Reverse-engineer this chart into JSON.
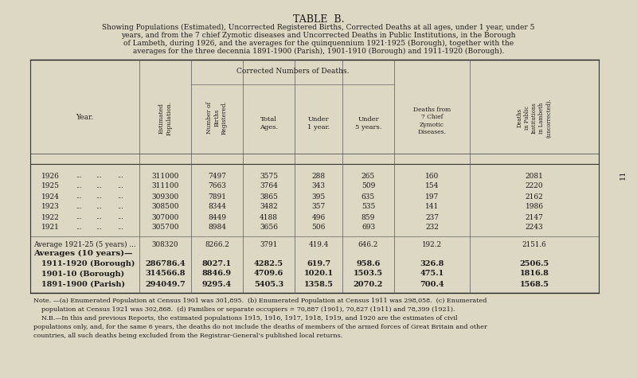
{
  "title": "TABLE  B.",
  "subtitle_lines": [
    "Showing Populations (Estimated), Uncorrected Registered Births, Corrected Deaths at all ages, under 1 year, under 5",
    "years, and from the 7 chief Zymotic diseases and Uncorrected Deaths in Public Institutions, in the Borough",
    "of Lambeth, during 1926, and the averages for the quinquennium 1921·1925 (Borough), together with the",
    "averages for the three decennia 1891-1900 (Parish), 1901-1910 (Borough) and 1911-1920 (Borough)."
  ],
  "bg_color": "#ddd8c4",
  "rows": [
    {
      "year": "1926",
      "pop": "311000",
      "births": "7497",
      "total": "3575",
      "u1": "288",
      "u5": "265",
      "zymo": "160",
      "pub": "2081"
    },
    {
      "year": "1925",
      "pop": "311100",
      "births": "7663",
      "total": "3764",
      "u1": "343",
      "u5": "509",
      "zymo": "154",
      "pub": "2220"
    },
    {
      "year": "1924",
      "pop": "309300",
      "births": "7891",
      "total": "3865",
      "u1": "395",
      "u5": "635",
      "zymo": "197",
      "pub": "2162"
    },
    {
      "year": "1923",
      "pop": "308500",
      "births": "8344",
      "total": "3482",
      "u1": "357",
      "u5": "535",
      "zymo": "141",
      "pub": "1986"
    },
    {
      "year": "1922",
      "pop": "307000",
      "births": "8449",
      "total": "4188",
      "u1": "496",
      "u5": "859",
      "zymo": "237",
      "pub": "2147"
    },
    {
      "year": "1921",
      "pop": "305700",
      "births": "8984",
      "total": "3656",
      "u1": "506",
      "u5": "693",
      "zymo": "232",
      "pub": "2243"
    }
  ],
  "avg_row": {
    "label": "Average 1921-25 (5 years) ...",
    "pop": "308320",
    "births": "8266.2",
    "total": "3791",
    "u1": "419.4",
    "u5": "646.2",
    "zymo": "192.2",
    "pub": "2151.6"
  },
  "avg10_header": "Averages (10 years)—",
  "avg10_rows": [
    {
      "label": "1911-1920 (Borough)",
      "pop": "286786.4",
      "births": "8027.1",
      "total": "4282.5",
      "u1": "619.7",
      "u5": "958.6",
      "zymo": "326.8",
      "pub": "2506.5"
    },
    {
      "label": "1901-10 (Borough)",
      "pop": "314566.8",
      "births": "8846.9",
      "total": "4709.6",
      "u1": "1020.1",
      "u5": "1503.5",
      "zymo": "475.1",
      "pub": "1816.8"
    },
    {
      "label": "1891-1900 (Parish)",
      "pop": "294049.7",
      "births": "9295.4",
      "total": "5405.3",
      "u1": "1358.5",
      "u5": "2070.2",
      "zymo": "700.4",
      "pub": "1568.5"
    }
  ],
  "note_lines": [
    "Note. —(a) Enumerated Population at Census 1901 was 301,895.  (b) Enumerated Population at Census 1911 was 298,058.  (c) Enumerated",
    "    population at Census 1921 was 302,868.  (d) Families or separate occupiers = 70,887 (1901), 70,827 (1911) and 78,399 (1921).",
    "    N.B.—In this and previous Reports, the estimated populations 1915, 1916, 1917, 1918, 1919, and 1920 are the estimates of civil",
    "populations only, and, for the same 6 years, the deaths do not include the deaths of members of the armed forces of Great Britain and other",
    "countries, all such deaths being excluded from the Registrar-General’s published local returns."
  ],
  "page_num": "11"
}
